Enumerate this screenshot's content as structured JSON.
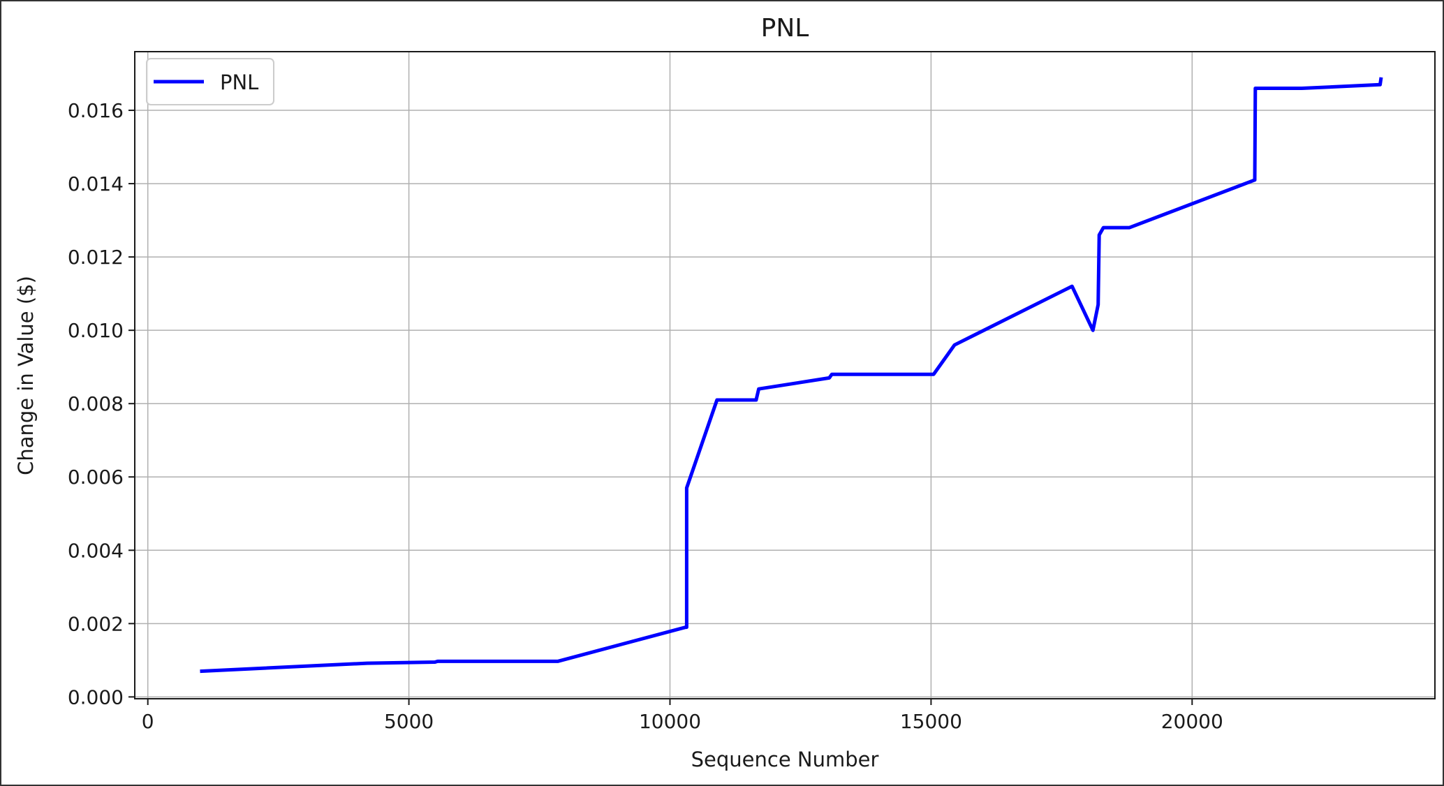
{
  "chart_data": {
    "type": "line",
    "title": "PNL",
    "xlabel": "Sequence Number",
    "ylabel": "Change in Value ($)",
    "xlim": [
      -250,
      24650
    ],
    "ylim": [
      -5e-05,
      0.0176
    ],
    "xticks": [
      0,
      5000,
      10000,
      15000,
      20000
    ],
    "xtick_labels": [
      "0",
      "5000",
      "10000",
      "15000",
      "20000"
    ],
    "yticks": [
      0.0,
      0.002,
      0.004,
      0.006,
      0.008,
      0.01,
      0.012,
      0.014,
      0.016
    ],
    "ytick_labels": [
      "0.000",
      "0.002",
      "0.004",
      "0.006",
      "0.008",
      "0.010",
      "0.012",
      "0.014",
      "0.016"
    ],
    "grid": true,
    "legend": {
      "placement": "top-left",
      "entries": [
        "PNL"
      ]
    },
    "series": [
      {
        "name": "PNL",
        "color": "#0000ff",
        "x": [
          1000,
          4200,
          5500,
          5550,
          7850,
          10300,
          10320,
          10320,
          10900,
          11650,
          11700,
          13050,
          13100,
          15050,
          15450,
          17700,
          18100,
          18200,
          18220,
          18300,
          18800,
          21200,
          21210,
          22100,
          23600,
          23620
        ],
        "y": [
          0.0007,
          0.00092,
          0.00095,
          0.00097,
          0.00097,
          0.0019,
          0.0019,
          0.0057,
          0.0081,
          0.0081,
          0.0084,
          0.0087,
          0.0088,
          0.0088,
          0.0096,
          0.0112,
          0.01,
          0.0107,
          0.0126,
          0.0128,
          0.0128,
          0.0141,
          0.0166,
          0.0166,
          0.0167,
          0.0169
        ]
      }
    ]
  }
}
